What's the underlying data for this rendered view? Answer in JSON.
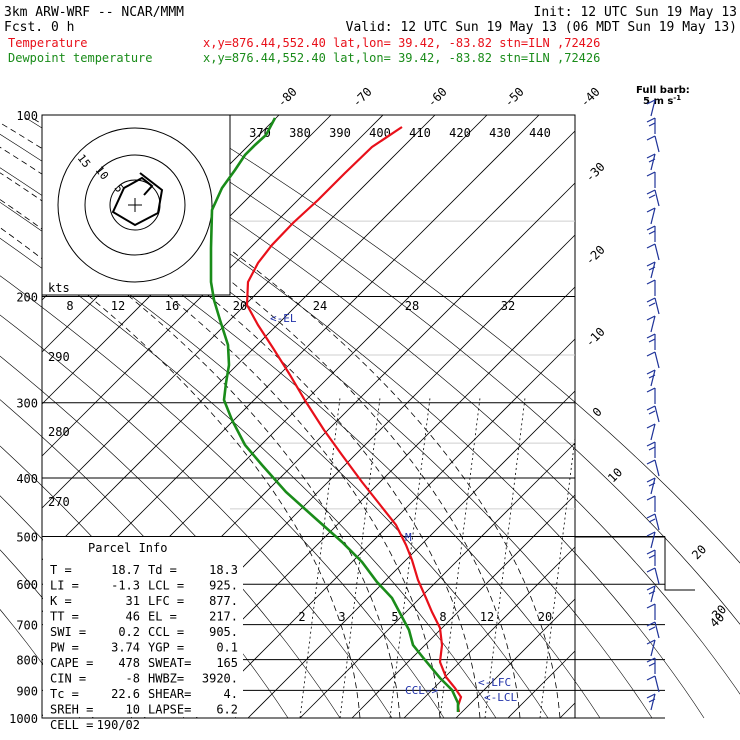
{
  "header": {
    "model": "3km ARW-WRF -- NCAR/MMM",
    "init": "Init: 12 UTC Sun 19 May 13",
    "fcst": "Fcst.     0 h",
    "valid": "Valid: 12 UTC Sun 19 May 13 (06 MDT Sun 19 May 13)",
    "legend": [
      {
        "name": "Temperature",
        "info": "x,y=876.44,552.40   lat,lon= 39.42, -83.82  stn=ILN ,72426",
        "color": "#e8101a"
      },
      {
        "name": "Dewpoint temperature",
        "info": "x,y=876.44,552.40   lat,lon= 39.42, -83.82  stn=ILN ,72426",
        "color": "#1a8c1a"
      }
    ]
  },
  "chart_data": {
    "type": "line",
    "title": "",
    "xlabel": "",
    "ylabel": "",
    "y_scale": "log-pressure",
    "pressure_levels": [
      100,
      200,
      300,
      400,
      500,
      600,
      700,
      800,
      900,
      1000
    ],
    "series": [
      {
        "name": "Temperature",
        "color": "#e8101a",
        "points": [
          [
            402,
            127
          ],
          [
            372,
            147
          ],
          [
            345,
            173
          ],
          [
            318,
            200
          ],
          [
            293,
            223
          ],
          [
            272,
            245
          ],
          [
            258,
            263
          ],
          [
            248,
            282
          ],
          [
            247,
            305
          ],
          [
            258,
            325
          ],
          [
            273,
            348
          ],
          [
            290,
            375
          ],
          [
            306,
            402
          ],
          [
            324,
            430
          ],
          [
            342,
            455
          ],
          [
            362,
            482
          ],
          [
            381,
            506
          ],
          [
            396,
            525
          ],
          [
            406,
            545
          ],
          [
            412,
            560
          ],
          [
            418,
            580
          ],
          [
            426,
            598
          ],
          [
            432,
            612
          ],
          [
            440,
            628
          ],
          [
            442,
            645
          ],
          [
            440,
            662
          ],
          [
            446,
            677
          ],
          [
            455,
            688
          ],
          [
            461,
            697
          ],
          [
            458,
            706
          ],
          [
            459,
            712
          ]
        ]
      },
      {
        "name": "Dewpoint temperature",
        "color": "#1a8c1a",
        "points": [
          [
            275,
            118
          ],
          [
            266,
            135
          ],
          [
            255,
            145
          ],
          [
            245,
            155
          ],
          [
            235,
            170
          ],
          [
            222,
            188
          ],
          [
            212,
            210
          ],
          [
            211,
            248
          ],
          [
            211,
            282
          ],
          [
            214,
            300
          ],
          [
            220,
            320
          ],
          [
            228,
            345
          ],
          [
            229,
            365
          ],
          [
            226,
            383
          ],
          [
            224,
            400
          ],
          [
            232,
            420
          ],
          [
            245,
            445
          ],
          [
            262,
            465
          ],
          [
            286,
            492
          ],
          [
            315,
            518
          ],
          [
            342,
            542
          ],
          [
            362,
            562
          ],
          [
            377,
            582
          ],
          [
            392,
            598
          ],
          [
            401,
            615
          ],
          [
            409,
            630
          ],
          [
            413,
            645
          ],
          [
            425,
            660
          ],
          [
            440,
            678
          ],
          [
            452,
            690
          ],
          [
            458,
            703
          ],
          [
            458,
            712
          ]
        ]
      }
    ],
    "temp_ticks_top": [
      "-80",
      "-70",
      "-60",
      "-50",
      "-40"
    ],
    "temp_ticks_right": [
      "-30",
      "-20",
      "-10",
      "0",
      "10",
      "20",
      "30",
      "40"
    ],
    "theta_labels": [
      "370",
      "380",
      "390",
      "400",
      "410",
      "420",
      "430",
      "440"
    ],
    "theta_left_labels": [
      "290",
      "280",
      "270"
    ],
    "mixing_labels": [
      "2",
      "3",
      "5",
      "8",
      "12",
      "20"
    ],
    "hodo_speed_labels": [
      "kts",
      "8",
      "12",
      "16",
      "20",
      "24",
      "28",
      "32"
    ],
    "hodo_rings": [
      "15",
      "10",
      "5"
    ],
    "markers": {
      "el": "<-EL",
      "lfc": "<-LFC",
      "lcl": "<-LCL",
      "ccl": "CCL->",
      "m": "M"
    },
    "barb_label": "Full barb:",
    "barb_unit": "5 m s",
    "barb_unit_exp": "-1"
  },
  "parcel": {
    "title": "Parcel Info",
    "rows": [
      [
        "T  =",
        "18.7",
        "Td =",
        "18.3"
      ],
      [
        "LI =",
        "-1.3",
        "LCL =",
        "925."
      ],
      [
        "K  =",
        "31",
        "LFC =",
        "877."
      ],
      [
        "TT =",
        "46",
        "EL =",
        "217."
      ],
      [
        "SWI =",
        "0.2",
        "CCL =",
        "905."
      ],
      [
        "PW =",
        "3.74",
        "YGP =",
        "0.1"
      ],
      [
        "CAPE =",
        "478",
        "SWEAT=",
        "165"
      ],
      [
        "CIN =",
        "-8",
        "HWBZ=",
        "3920."
      ],
      [
        "Tc =",
        "22.6",
        "SHEAR=",
        "4."
      ],
      [
        "SREH =",
        "10",
        "LAPSE=",
        "6.2"
      ],
      [
        "CELL =",
        "190/02",
        "",
        ""
      ]
    ]
  }
}
